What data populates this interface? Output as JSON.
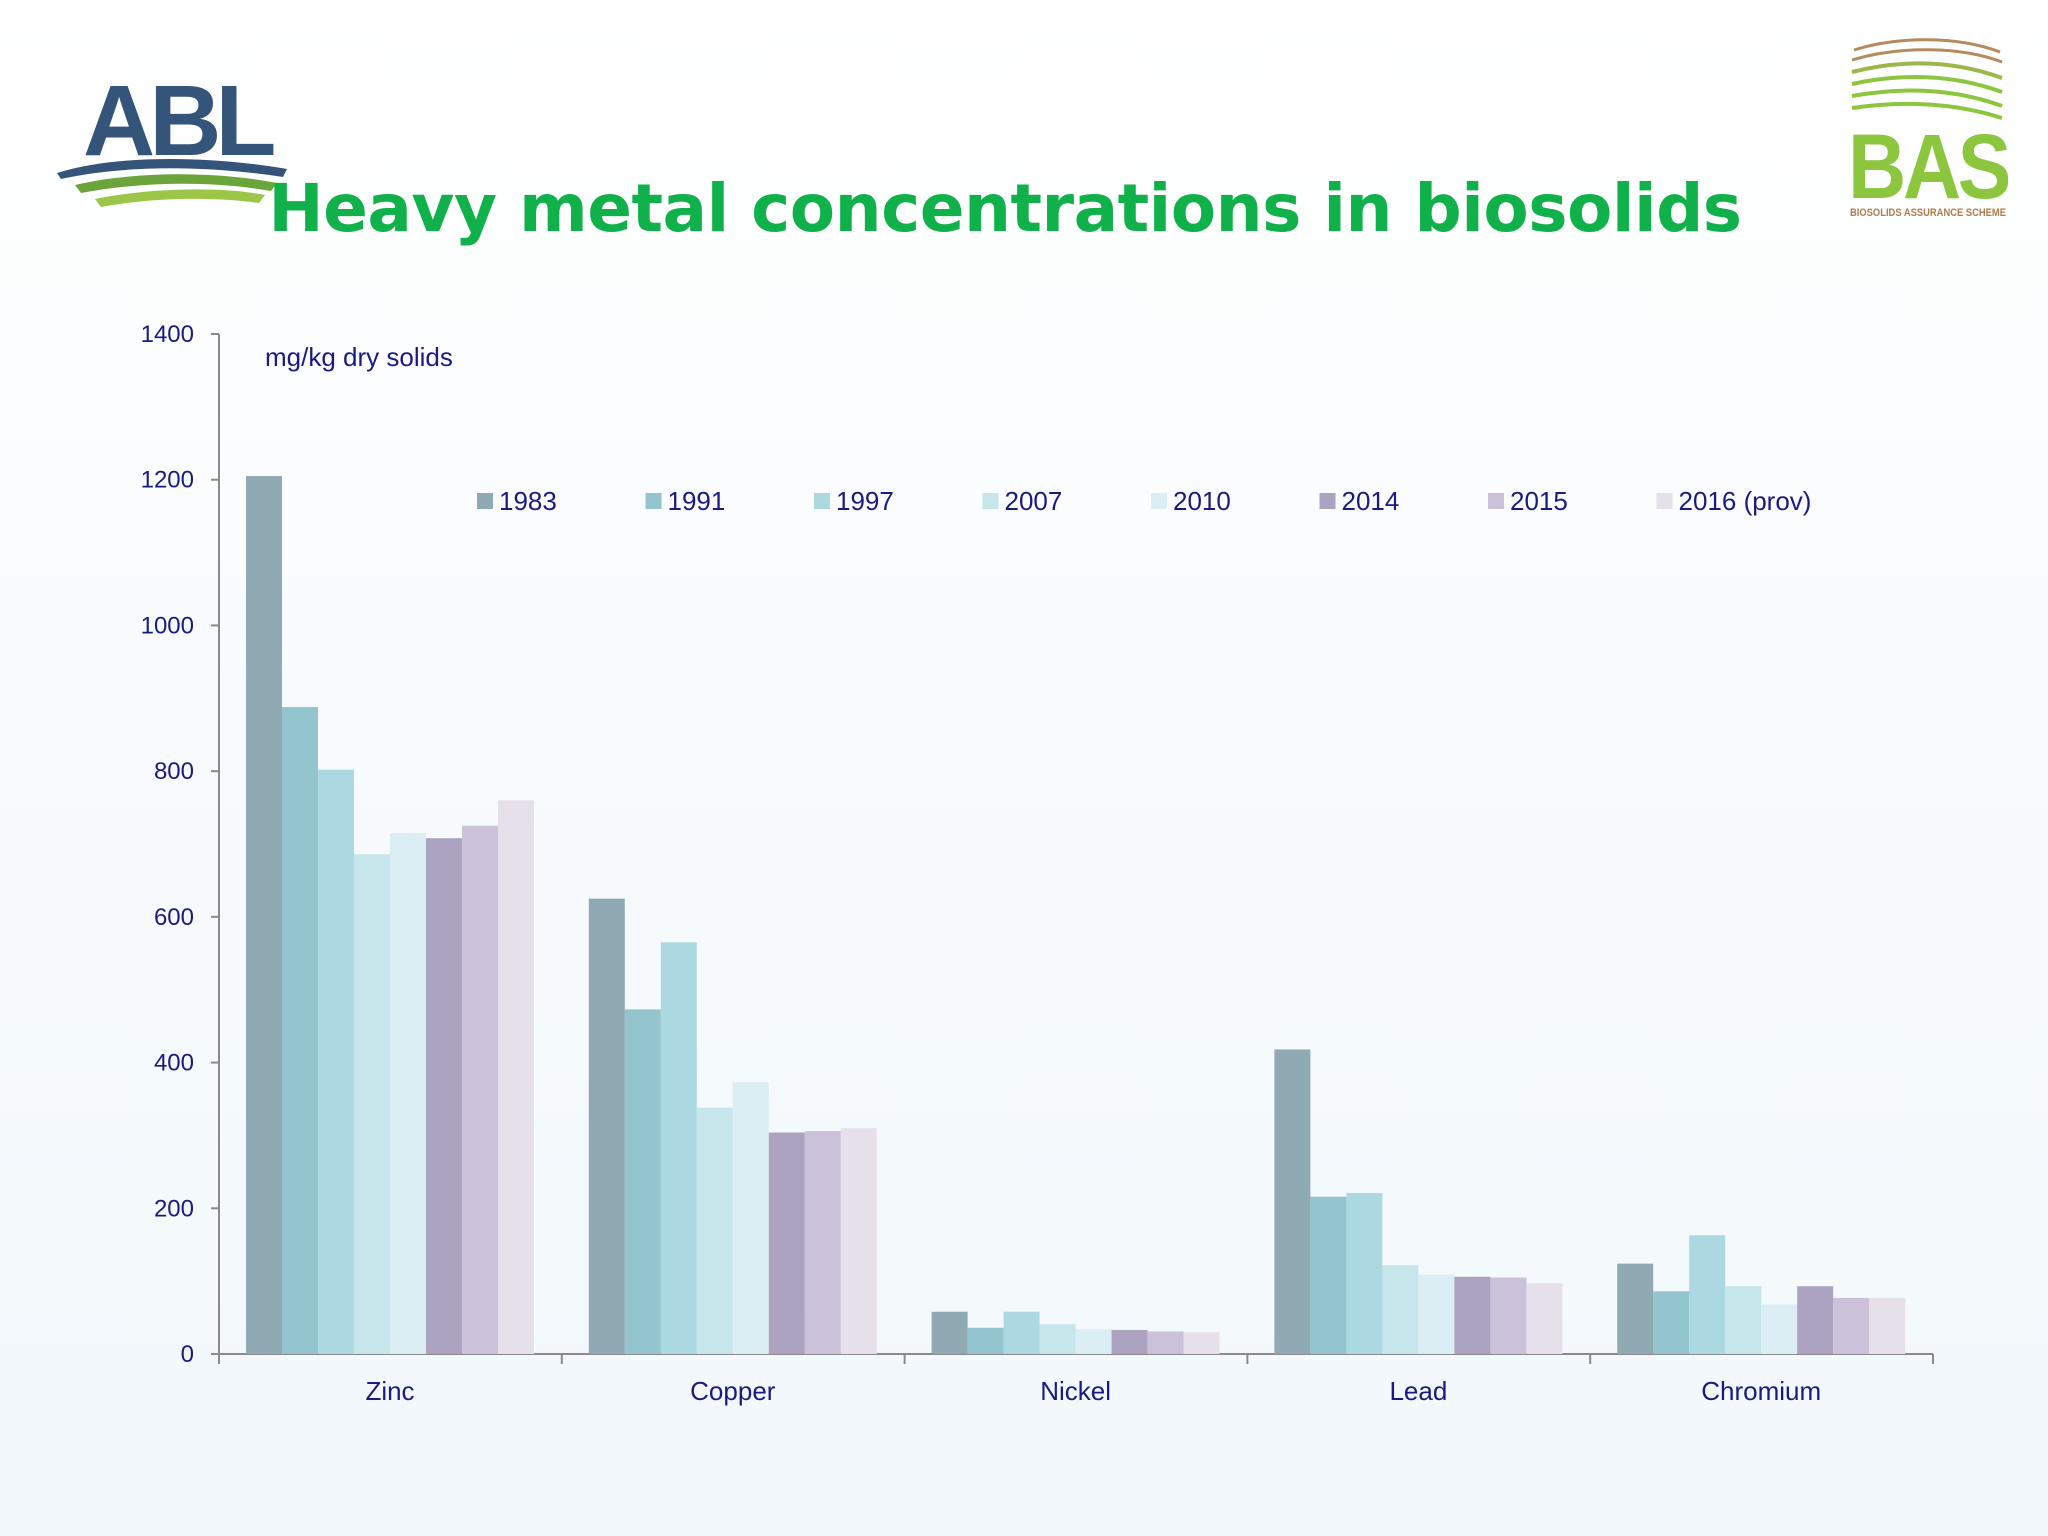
{
  "slide": {
    "title": "Heavy metal concentrations in biosolids",
    "logo_left": {
      "name": "abl-logo",
      "text": "ABL",
      "colors": [
        "#34547a",
        "#8dbb3d"
      ]
    },
    "logo_right": {
      "name": "bas-logo",
      "text": "BAS",
      "subtext": "BIOSOLIDS ASSURANCE SCHEME",
      "colors": [
        "#8cc63f",
        "#b07c4a"
      ]
    }
  },
  "chart_data": {
    "type": "bar",
    "title": "",
    "unit_label": "mg/kg dry solids",
    "xlabel": "",
    "ylabel": "",
    "ylim": [
      0,
      1400
    ],
    "yticks": [
      0,
      200,
      400,
      600,
      800,
      1000,
      1200,
      1400
    ],
    "grid": false,
    "legend_position": "top-center",
    "categories": [
      "Zinc",
      "Copper",
      "Nickel",
      "Lead",
      "Chromium"
    ],
    "series": [
      {
        "name": "1983",
        "color": "#8faab2",
        "values": [
          1205,
          625,
          58,
          418,
          124
        ]
      },
      {
        "name": "1991",
        "color": "#94c4cd",
        "values": [
          888,
          473,
          36,
          216,
          86
        ]
      },
      {
        "name": "1997",
        "color": "#acd8e2",
        "values": [
          802,
          565,
          58,
          221,
          163
        ]
      },
      {
        "name": "2007",
        "color": "#c6e6ec",
        "values": [
          686,
          338,
          41,
          122,
          93
        ]
      },
      {
        "name": "2010",
        "color": "#dbeef4",
        "values": [
          715,
          373,
          34,
          109,
          68
        ]
      },
      {
        "name": "2014",
        "color": "#aba3bf",
        "values": [
          708,
          304,
          33,
          106,
          93
        ]
      },
      {
        "name": "2015",
        "color": "#cbc2da",
        "values": [
          725,
          306,
          31,
          105,
          77
        ]
      },
      {
        "name": "2016 (prov)",
        "color": "#e6e0ea",
        "values": [
          760,
          310,
          30,
          97,
          77
        ]
      }
    ]
  }
}
